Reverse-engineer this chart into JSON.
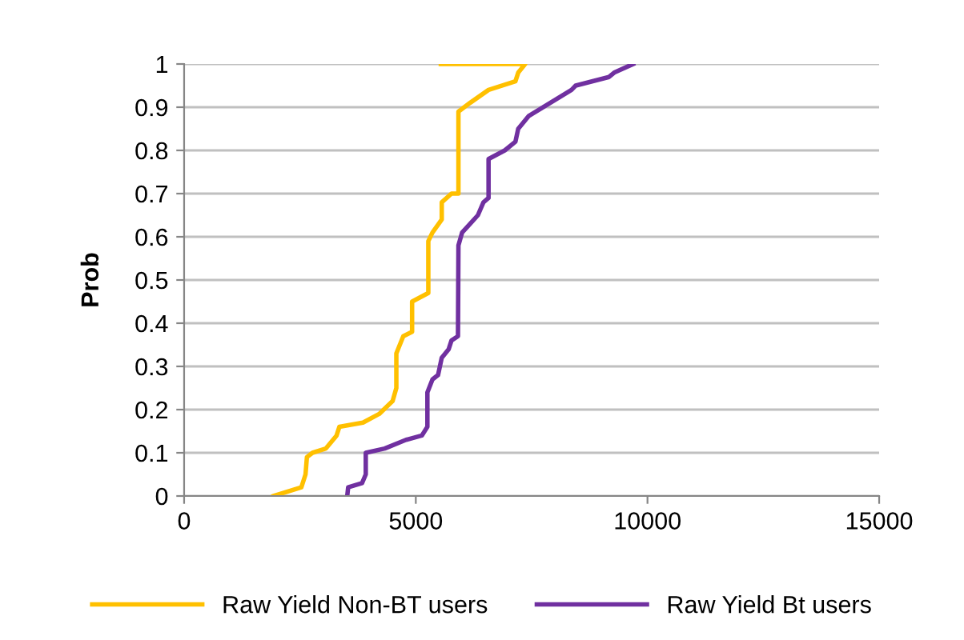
{
  "chart_data": {
    "type": "line",
    "ylabel": "Prob",
    "xlim": [
      0,
      15000
    ],
    "xticks": [
      0,
      5000,
      10000,
      15000
    ],
    "ylim": [
      0,
      1
    ],
    "yticks": [
      0,
      0.1,
      0.2,
      0.3,
      0.4,
      0.5,
      0.6,
      0.7,
      0.8,
      0.9,
      1
    ],
    "grid": "y",
    "legend": "bottom",
    "marker": "none",
    "line_style": "solid",
    "series": [
      {
        "name": "Raw Yield Non-BT users",
        "color": "#ffc000",
        "x": [
          1930,
          2530,
          2620,
          2650,
          2770,
          3060,
          3290,
          3350,
          3860,
          4210,
          4500,
          4580,
          4580,
          4730,
          4920,
          4920,
          5270,
          5270,
          5360,
          5560,
          5560,
          5770,
          5920,
          5920,
          6170,
          6570,
          7150,
          7210,
          7360,
          5540
        ],
        "values": [
          0,
          0.02,
          0.05,
          0.09,
          0.1,
          0.11,
          0.14,
          0.16,
          0.17,
          0.19,
          0.22,
          0.25,
          0.33,
          0.37,
          0.38,
          0.45,
          0.47,
          0.59,
          0.61,
          0.64,
          0.68,
          0.7,
          0.7,
          0.89,
          0.91,
          0.94,
          0.96,
          0.98,
          1,
          1
        ]
      },
      {
        "name": "Raw Yield Bt users",
        "color": "#7030a0",
        "x": [
          3520,
          3540,
          3840,
          3920,
          3920,
          4330,
          4790,
          5130,
          5250,
          5250,
          5360,
          5480,
          5560,
          5710,
          5770,
          5910,
          5920,
          6000,
          6170,
          6340,
          6460,
          6570,
          6570,
          6920,
          7150,
          7210,
          7440,
          7900,
          8360,
          8450,
          9170,
          9280,
          9690
        ],
        "values": [
          0,
          0.02,
          0.03,
          0.05,
          0.1,
          0.11,
          0.13,
          0.14,
          0.16,
          0.24,
          0.27,
          0.28,
          0.32,
          0.34,
          0.36,
          0.37,
          0.58,
          0.61,
          0.63,
          0.65,
          0.68,
          0.69,
          0.78,
          0.8,
          0.82,
          0.85,
          0.88,
          0.91,
          0.94,
          0.95,
          0.97,
          0.98,
          1
        ]
      }
    ]
  }
}
